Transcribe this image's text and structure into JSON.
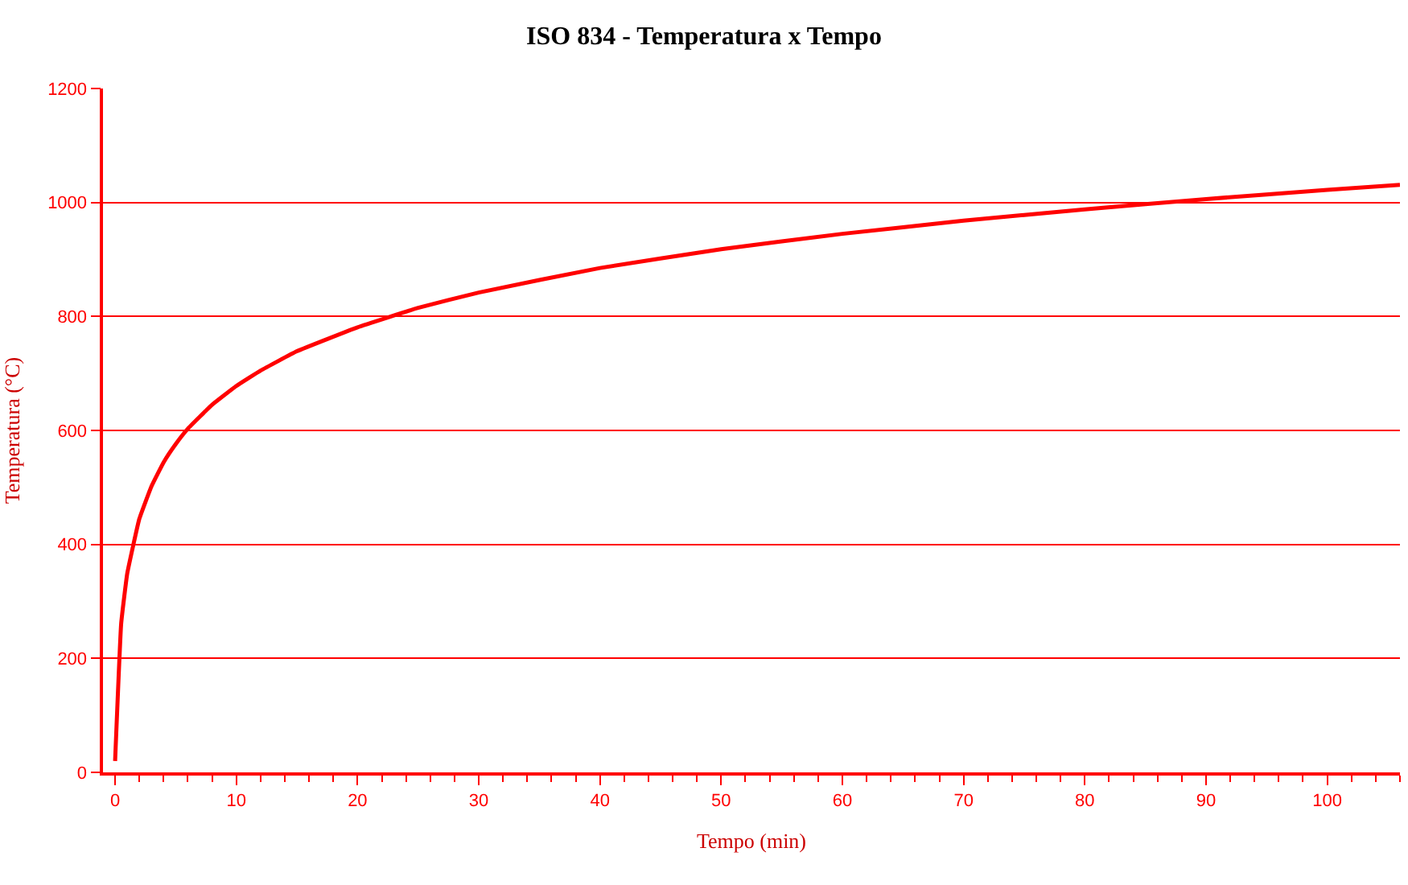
{
  "chart_data": {
    "type": "line",
    "title": "ISO 834 - Temperatura x Tempo",
    "xlabel": "Tempo (min)",
    "ylabel": "Temperatura (°C)",
    "x": [
      0,
      0.5,
      1,
      2,
      3,
      4,
      5,
      6,
      8,
      10,
      12,
      15,
      20,
      25,
      30,
      40,
      50,
      60,
      70,
      80,
      90,
      100,
      106
    ],
    "series": [
      {
        "color": "#ff0000",
        "values": [
          20,
          261,
          349,
          445,
          502,
          544,
          576,
          603,
          645,
          678,
          705,
          739,
          781,
          815,
          842,
          885,
          918,
          945,
          968,
          988,
          1006,
          1022,
          1031
        ]
      }
    ],
    "xlim": [
      -1,
      106
    ],
    "xticks": [
      0,
      10,
      20,
      30,
      40,
      50,
      60,
      70,
      80,
      90,
      100
    ],
    "ylim": [
      0,
      1200
    ],
    "yticks": [
      0,
      200,
      400,
      600,
      800,
      1000,
      1200
    ],
    "grid": "y",
    "marker": "none",
    "line_style": "solid"
  }
}
